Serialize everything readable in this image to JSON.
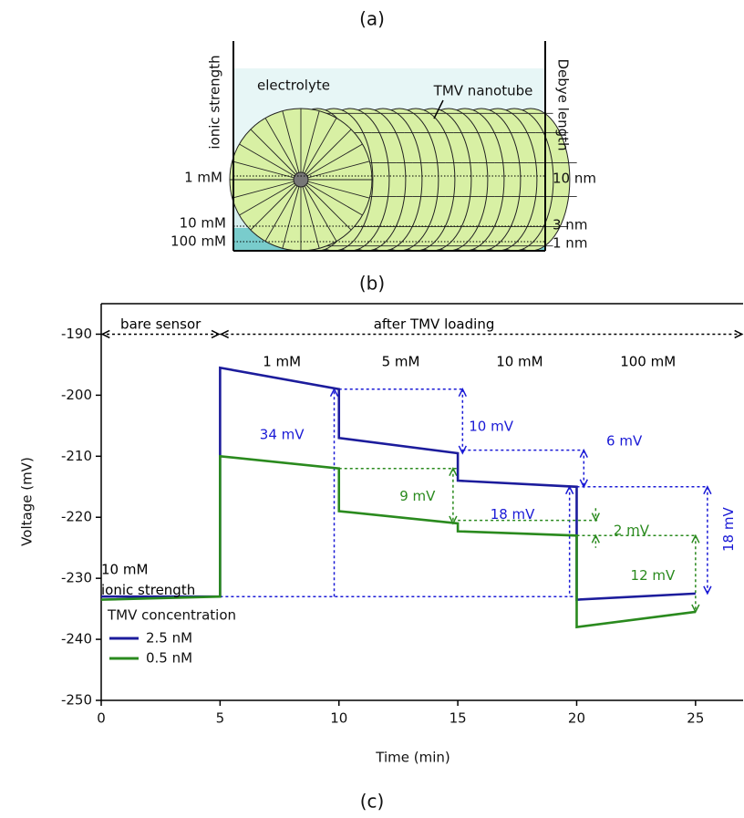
{
  "panel_a": {
    "label": "(a)",
    "left_axis": "ionic strength",
    "right_axis": "Debye length",
    "electrolyte": "electrolyte",
    "nanotube": "TMV nanotube",
    "left_ticks": [
      "1 mM",
      "10 mM",
      "100 mM"
    ],
    "right_ticks": [
      "10 nm",
      "3 nm",
      "1 nm"
    ]
  },
  "chart_data": {
    "type": "line",
    "label": "(b)",
    "xlabel": "Time (min)",
    "ylabel": "Voltage (mV)",
    "xlim": [
      0,
      27
    ],
    "ylim": [
      -250,
      -185
    ],
    "xticks": [
      0,
      5,
      10,
      15,
      20,
      25
    ],
    "yticks": [
      -250,
      -240,
      -230,
      -220,
      -210,
      -200,
      -190
    ],
    "x": [
      0,
      5,
      5,
      10,
      10,
      15,
      15,
      20,
      20,
      25
    ],
    "series": [
      {
        "name": "2.5 nM",
        "color": "#1c1c9c",
        "values": [
          -233,
          -233,
          -195.5,
          -199,
          -207,
          -209.5,
          -214,
          -215,
          -233.5,
          -232.5
        ]
      },
      {
        "name": "0.5 nM",
        "color": "#2a8a1e",
        "values": [
          -233.5,
          -233,
          -210,
          -212,
          -219,
          -221,
          -222.3,
          -223,
          -238,
          -235.5
        ]
      }
    ],
    "legend_title": "TMV concentration",
    "annotations": [
      "bare sensor",
      "after TMV loading",
      "1 mM",
      "5 mM",
      "10 mM",
      "100 mM",
      "10 mM",
      "ionic strength",
      "34 mV",
      "10 mV",
      "6 mV",
      "18 mV",
      "18 mV",
      "9 mV",
      "2 mV",
      "12 mV"
    ]
  },
  "panel_c": {
    "label": "(c)"
  }
}
